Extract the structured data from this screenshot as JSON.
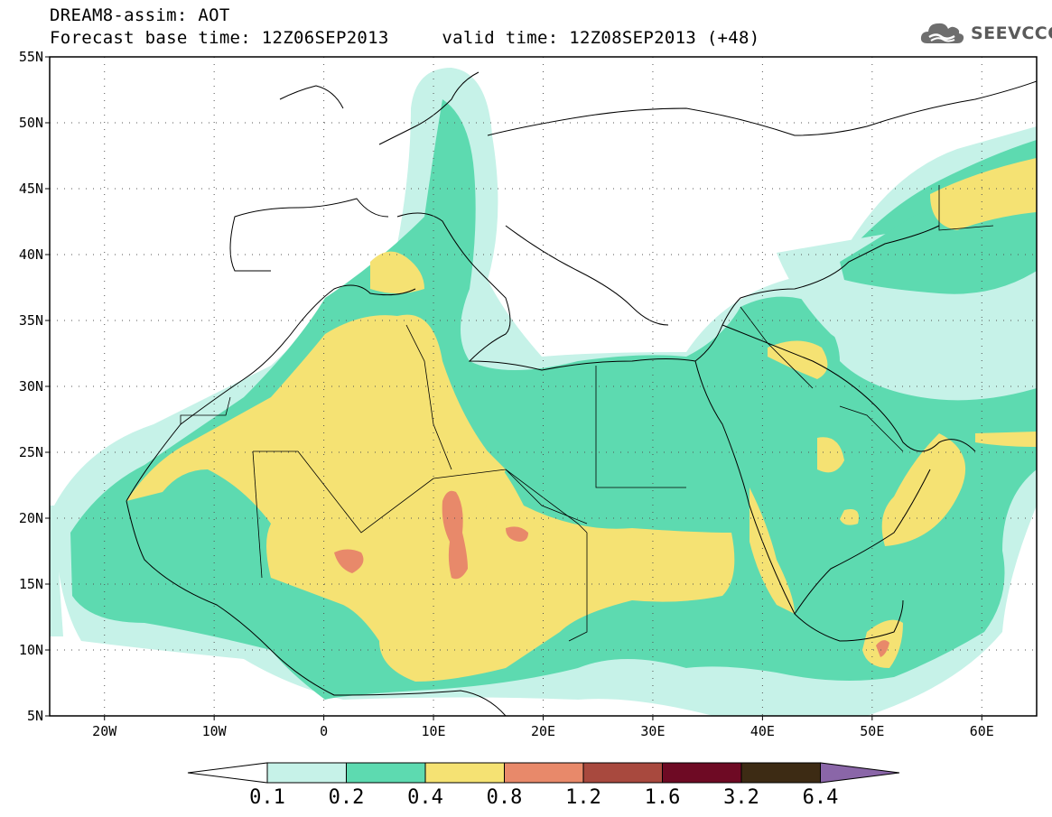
{
  "header": {
    "line1": "DREAM8-assim: AOT",
    "line2": "Forecast base time: 12Z06SEP2013     valid time: 12Z08SEP2013 (+48)"
  },
  "logo": {
    "text": "SEEVCCC",
    "icon": "cloud-icon"
  },
  "map": {
    "lat_labels": [
      "55N",
      "50N",
      "45N",
      "40N",
      "35N",
      "30N",
      "25N",
      "20N",
      "15N",
      "10N",
      "5N"
    ],
    "lon_labels": [
      "20W",
      "10W",
      "0",
      "10E",
      "20E",
      "30E",
      "40E",
      "50E",
      "60E"
    ],
    "extent": {
      "lon_min": -25,
      "lon_max": 65,
      "lat_min": 5,
      "lat_max": 55
    },
    "grid": "dotted"
  },
  "colorbar": {
    "labels": [
      "0.1",
      "0.2",
      "0.4",
      "0.8",
      "1.2",
      "1.6",
      "3.2",
      "6.4"
    ],
    "colors": [
      "#ffffff",
      "#c6f2e8",
      "#5ddab0",
      "#f5e273",
      "#e8896a",
      "#a8493e",
      "#6e0a24",
      "#3d2b14",
      "#8a66a8"
    ]
  }
}
